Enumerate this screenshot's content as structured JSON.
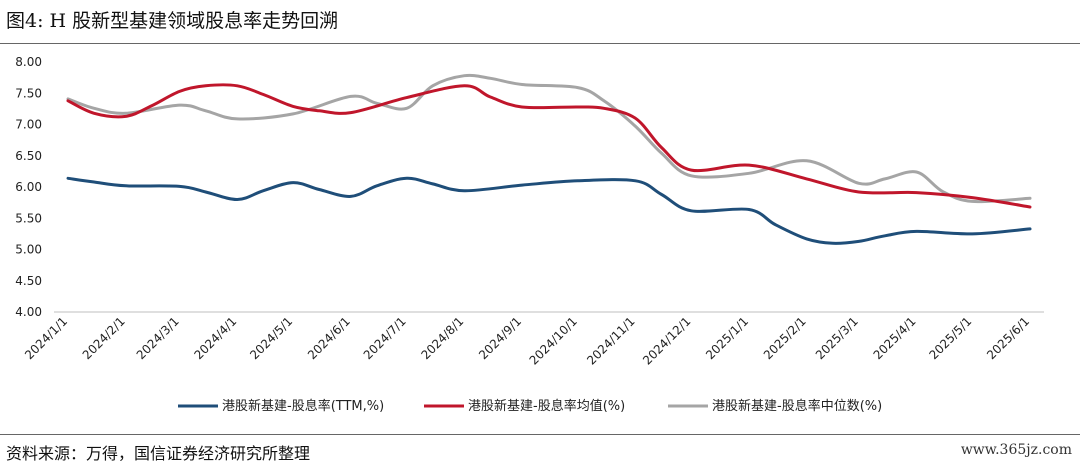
{
  "figure": {
    "title": "图4: H 股新型基建领域股息率走势回溯",
    "source": "资料来源：万得，国信证券经济研究所整理",
    "watermark": "www.365jz.com"
  },
  "chart_data": {
    "type": "line",
    "title": "",
    "xlabel": "",
    "ylabel": "",
    "ylim": [
      4.0,
      8.0
    ],
    "yticks": [
      "4.00",
      "4.50",
      "5.00",
      "5.50",
      "6.00",
      "6.50",
      "7.00",
      "7.50",
      "8.00"
    ],
    "grid": false,
    "legend_position": "bottom",
    "categories": [
      "2024/1/1",
      "2024/2/1",
      "2024/3/1",
      "2024/4/1",
      "2024/5/1",
      "2024/6/1",
      "2024/7/1",
      "2024/8/1",
      "2024/9/1",
      "2024/10/1",
      "2024/11/1",
      "2024/12/1",
      "2025/1/1",
      "2025/2/1",
      "2025/3/1",
      "2025/4/1",
      "2025/5/1",
      "2025/6/1"
    ],
    "series": [
      {
        "name": "港股新基建-股息率(TTM,%)",
        "color": "#1f4e79",
        "points": [
          {
            "x": "2024/1/1",
            "y": 6.14
          },
          {
            "x": "2024/1/15",
            "y": 6.08
          },
          {
            "x": "2024/2/1",
            "y": 6.02
          },
          {
            "x": "2024/3/1",
            "y": 6.01
          },
          {
            "x": "2024/3/15",
            "y": 5.92
          },
          {
            "x": "2024/4/1",
            "y": 5.8
          },
          {
            "x": "2024/4/15",
            "y": 5.94
          },
          {
            "x": "2024/5/1",
            "y": 6.07
          },
          {
            "x": "2024/5/15",
            "y": 5.96
          },
          {
            "x": "2024/6/1",
            "y": 5.85
          },
          {
            "x": "2024/6/15",
            "y": 6.02
          },
          {
            "x": "2024/7/1",
            "y": 6.14
          },
          {
            "x": "2024/7/15",
            "y": 6.05
          },
          {
            "x": "2024/8/1",
            "y": 5.94
          },
          {
            "x": "2024/9/1",
            "y": 6.03
          },
          {
            "x": "2024/10/1",
            "y": 6.1
          },
          {
            "x": "2024/11/1",
            "y": 6.1
          },
          {
            "x": "2024/11/15",
            "y": 5.88
          },
          {
            "x": "2024/12/1",
            "y": 5.62
          },
          {
            "x": "2025/1/1",
            "y": 5.64
          },
          {
            "x": "2025/1/15",
            "y": 5.4
          },
          {
            "x": "2025/2/1",
            "y": 5.17
          },
          {
            "x": "2025/2/15",
            "y": 5.1
          },
          {
            "x": "2025/3/1",
            "y": 5.13
          },
          {
            "x": "2025/3/15",
            "y": 5.22
          },
          {
            "x": "2025/4/1",
            "y": 5.29
          },
          {
            "x": "2025/5/1",
            "y": 5.25
          },
          {
            "x": "2025/6/1",
            "y": 5.33
          }
        ]
      },
      {
        "name": "港股新基建-股息率均值(%)",
        "color": "#c0162b",
        "points": [
          {
            "x": "2024/1/1",
            "y": 7.38
          },
          {
            "x": "2024/1/15",
            "y": 7.18
          },
          {
            "x": "2024/2/1",
            "y": 7.13
          },
          {
            "x": "2024/2/15",
            "y": 7.3
          },
          {
            "x": "2024/3/1",
            "y": 7.53
          },
          {
            "x": "2024/3/15",
            "y": 7.62
          },
          {
            "x": "2024/4/1",
            "y": 7.62
          },
          {
            "x": "2024/4/15",
            "y": 7.48
          },
          {
            "x": "2024/5/1",
            "y": 7.29
          },
          {
            "x": "2024/5/15",
            "y": 7.22
          },
          {
            "x": "2024/6/1",
            "y": 7.19
          },
          {
            "x": "2024/7/1",
            "y": 7.43
          },
          {
            "x": "2024/8/1",
            "y": 7.62
          },
          {
            "x": "2024/8/15",
            "y": 7.44
          },
          {
            "x": "2024/9/1",
            "y": 7.28
          },
          {
            "x": "2024/10/1",
            "y": 7.28
          },
          {
            "x": "2024/10/15",
            "y": 7.26
          },
          {
            "x": "2024/11/1",
            "y": 7.1
          },
          {
            "x": "2024/11/15",
            "y": 6.63
          },
          {
            "x": "2024/12/1",
            "y": 6.27
          },
          {
            "x": "2025/1/1",
            "y": 6.35
          },
          {
            "x": "2025/2/1",
            "y": 6.13
          },
          {
            "x": "2025/3/1",
            "y": 5.92
          },
          {
            "x": "2025/4/1",
            "y": 5.91
          },
          {
            "x": "2025/5/1",
            "y": 5.83
          },
          {
            "x": "2025/6/1",
            "y": 5.68
          }
        ]
      },
      {
        "name": "港股新基建-股息率中位数(%)",
        "color": "#a5a5a5",
        "points": [
          {
            "x": "2024/1/1",
            "y": 7.41
          },
          {
            "x": "2024/1/15",
            "y": 7.26
          },
          {
            "x": "2024/2/1",
            "y": 7.18
          },
          {
            "x": "2024/3/1",
            "y": 7.31
          },
          {
            "x": "2024/3/15",
            "y": 7.22
          },
          {
            "x": "2024/4/1",
            "y": 7.09
          },
          {
            "x": "2024/5/1",
            "y": 7.17
          },
          {
            "x": "2024/6/1",
            "y": 7.45
          },
          {
            "x": "2024/6/15",
            "y": 7.34
          },
          {
            "x": "2024/7/1",
            "y": 7.26
          },
          {
            "x": "2024/7/15",
            "y": 7.62
          },
          {
            "x": "2024/8/1",
            "y": 7.78
          },
          {
            "x": "2024/8/15",
            "y": 7.74
          },
          {
            "x": "2024/9/1",
            "y": 7.64
          },
          {
            "x": "2024/10/1",
            "y": 7.59
          },
          {
            "x": "2024/10/15",
            "y": 7.38
          },
          {
            "x": "2024/11/1",
            "y": 6.97
          },
          {
            "x": "2024/11/15",
            "y": 6.54
          },
          {
            "x": "2024/12/1",
            "y": 6.18
          },
          {
            "x": "2025/1/1",
            "y": 6.22
          },
          {
            "x": "2025/2/1",
            "y": 6.42
          },
          {
            "x": "2025/3/1",
            "y": 6.06
          },
          {
            "x": "2025/3/15",
            "y": 6.13
          },
          {
            "x": "2025/4/1",
            "y": 6.24
          },
          {
            "x": "2025/4/15",
            "y": 5.93
          },
          {
            "x": "2025/5/1",
            "y": 5.77
          },
          {
            "x": "2025/6/1",
            "y": 5.82
          }
        ]
      }
    ]
  }
}
